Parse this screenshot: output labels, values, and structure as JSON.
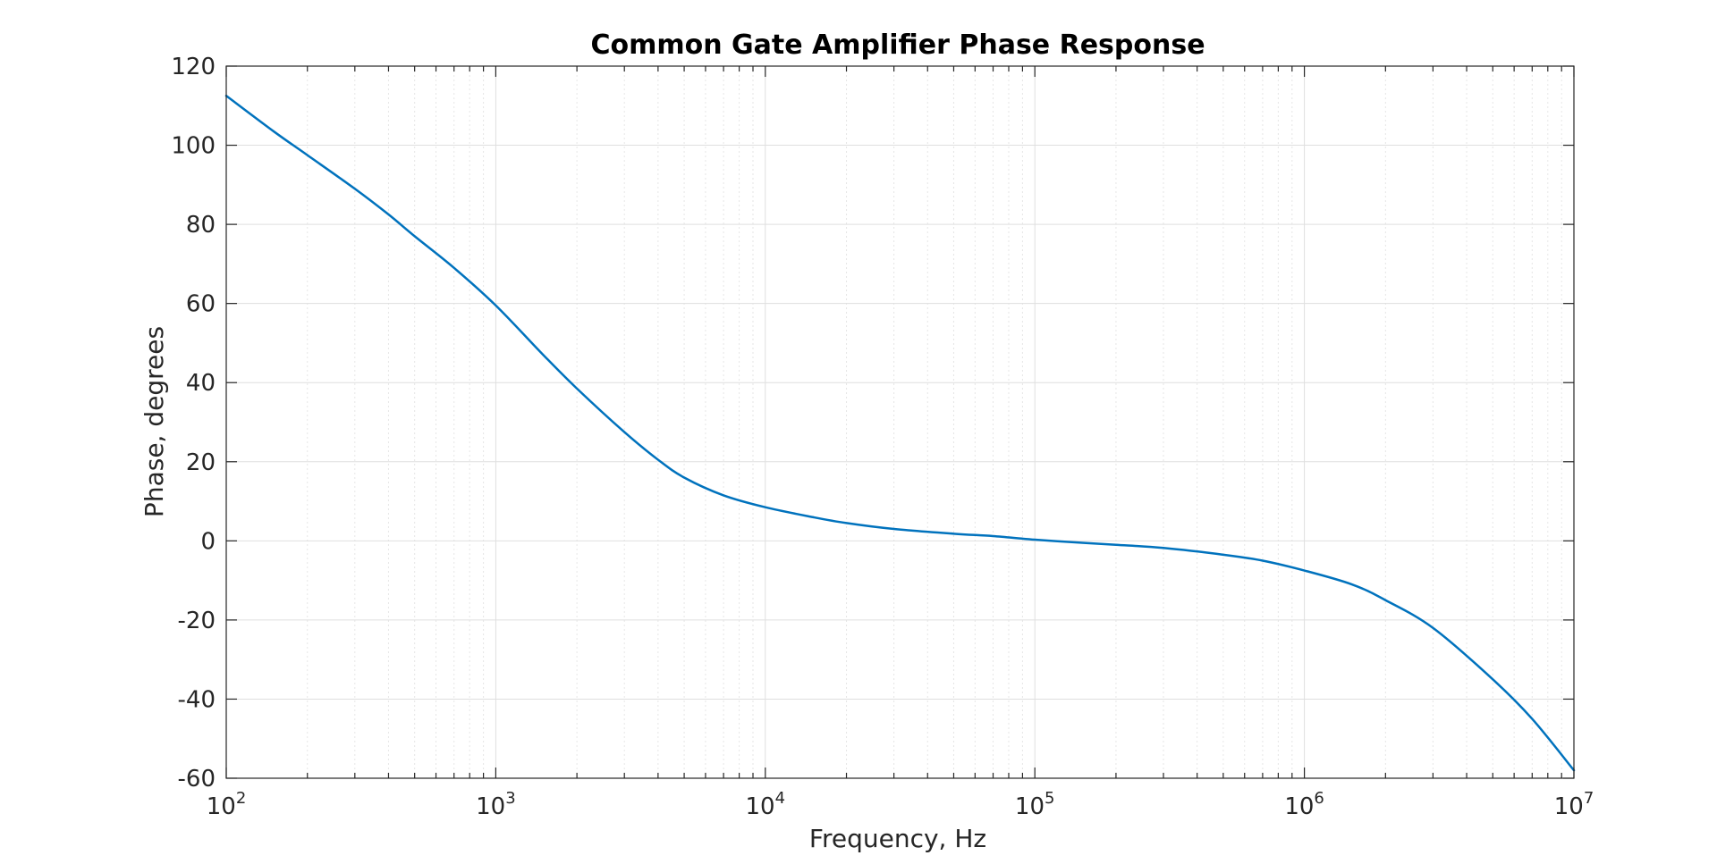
{
  "chart_data": {
    "type": "line",
    "title": "Common Gate Amplifier Phase Response",
    "xlabel": "Frequency, Hz",
    "ylabel": "Phase, degrees",
    "x_scale": "log",
    "xlim": [
      100,
      10000000
    ],
    "ylim": [
      -60,
      120
    ],
    "grid": true,
    "minor_grid_x": true,
    "x_ticks": [
      {
        "base": "10",
        "exp": "2",
        "value": 100
      },
      {
        "base": "10",
        "exp": "3",
        "value": 1000
      },
      {
        "base": "10",
        "exp": "4",
        "value": 10000
      },
      {
        "base": "10",
        "exp": "5",
        "value": 100000
      },
      {
        "base": "10",
        "exp": "6",
        "value": 1000000
      },
      {
        "base": "10",
        "exp": "7",
        "value": 10000000
      }
    ],
    "y_ticks": [
      {
        "label": "120",
        "value": 120
      },
      {
        "label": "100",
        "value": 100
      },
      {
        "label": "80",
        "value": 80
      },
      {
        "label": "60",
        "value": 60
      },
      {
        "label": "40",
        "value": 40
      },
      {
        "label": "20",
        "value": 20
      },
      {
        "label": "0",
        "value": 0
      },
      {
        "label": "-20",
        "value": -20
      },
      {
        "label": "-40",
        "value": -40
      },
      {
        "label": "-60",
        "value": -60
      }
    ],
    "series": [
      {
        "color": "#0072bd",
        "x": [
          100,
          150,
          200,
          300,
          400,
          500,
          700,
          1000,
          1500,
          2000,
          3000,
          4000,
          5000,
          7000,
          10000,
          15000,
          20000,
          30000,
          50000,
          70000,
          100000,
          150000,
          200000,
          300000,
          500000,
          700000,
          1000000,
          1500000,
          2000000,
          3000000,
          5000000,
          7000000,
          10000000
        ],
        "y": [
          112.5,
          103.5,
          97.5,
          89,
          82.5,
          77,
          69,
          59.5,
          47,
          38.5,
          27.5,
          20.5,
          16,
          11.5,
          8.5,
          6,
          4.5,
          3,
          1.8,
          1.2,
          0.3,
          -0.5,
          -1,
          -1.8,
          -3.5,
          -5,
          -7.5,
          -11,
          -15,
          -22,
          -35,
          -45,
          -58
        ]
      }
    ]
  }
}
